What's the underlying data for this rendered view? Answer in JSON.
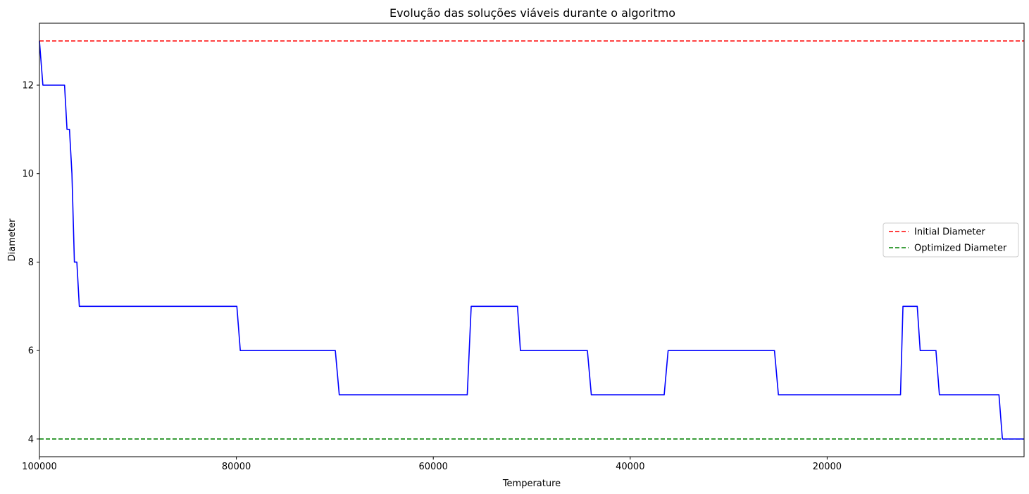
{
  "chart_data": {
    "type": "line",
    "title": "Evolução das soluções viáveis durante o algoritmo",
    "xlabel": "Temperature",
    "ylabel": "Diameter",
    "xlim": [
      100000,
      0
    ],
    "ylim": [
      3.6,
      13.4
    ],
    "x_inverted": true,
    "xticks": [
      100000,
      80000,
      60000,
      40000,
      20000
    ],
    "xtick_labels": [
      "100000",
      "80000",
      "60000",
      "40000",
      "20000"
    ],
    "yticks": [
      4,
      6,
      8,
      10,
      12
    ],
    "ytick_labels": [
      "4",
      "6",
      "8",
      "10",
      "12"
    ],
    "grid": false,
    "legend_position": "center-right",
    "series": [
      {
        "color": "#0000ff",
        "style": "solid",
        "x": [
          100000,
          99650,
          97450,
          97200,
          96950,
          96700,
          96450,
          96200,
          95950,
          95600,
          79950,
          79600,
          69950,
          69550,
          56550,
          56150,
          51450,
          51150,
          44350,
          43950,
          36550,
          36150,
          25350,
          24950,
          12550,
          12300,
          10850,
          10550,
          8950,
          8600,
          2550,
          2200,
          0
        ],
        "y": [
          13,
          12,
          12,
          11,
          11,
          10,
          8,
          8,
          7,
          7,
          7,
          6,
          6,
          5,
          5,
          7,
          7,
          6,
          6,
          5,
          5,
          6,
          6,
          5,
          5,
          7,
          7,
          6,
          6,
          5,
          5,
          4,
          4
        ]
      }
    ],
    "reference_lines": [
      {
        "name": "Initial Diameter",
        "y": 13,
        "color": "#ff0000",
        "style": "dashed"
      },
      {
        "name": "Optimized Diameter",
        "y": 4,
        "color": "#008000",
        "style": "dashed"
      }
    ],
    "legend": [
      "Initial Diameter",
      "Optimized Diameter"
    ]
  }
}
